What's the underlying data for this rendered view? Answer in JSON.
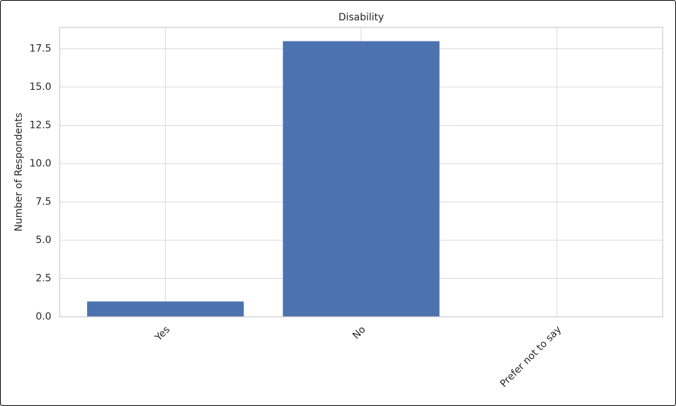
{
  "chart_data": {
    "type": "bar",
    "title": "Disability",
    "ylabel": "Number of Respondents",
    "categories": [
      "Yes",
      "No",
      "Prefer not to say"
    ],
    "values": [
      1,
      18,
      0
    ],
    "color": "#4c72b0",
    "ylim": [
      0,
      18.9
    ],
    "yticks": [
      {
        "value": 0,
        "label": "0.0"
      },
      2.5,
      {
        "value": 5,
        "label": "5.0"
      },
      7.5,
      {
        "value": 10,
        "label": "10.0"
      },
      12.5,
      {
        "value": 15,
        "label": "15.0"
      },
      17.5
    ],
    "grid": true
  }
}
